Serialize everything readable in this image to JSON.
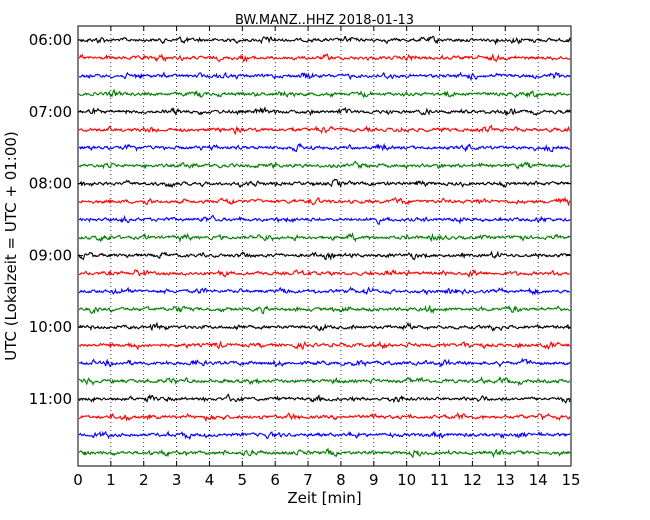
{
  "chart_data": {
    "type": "line",
    "title": "BW.MANZ..HHZ 2018-01-13",
    "xlabel": "Zeit  [min]",
    "ylabel": "UTC (Lokalzeit = UTC + 01:00)",
    "xlim": [
      0,
      15
    ],
    "x_ticks": [
      "0",
      "1",
      "2",
      "3",
      "4",
      "5",
      "6",
      "7",
      "8",
      "9",
      "10",
      "11",
      "12",
      "13",
      "14",
      "15"
    ],
    "y_tick_labels": [
      "06:00",
      "07:00",
      "08:00",
      "09:00",
      "10:00",
      "11:00"
    ],
    "trace_start_times": [
      "06:00",
      "06:15",
      "06:30",
      "06:45",
      "07:00",
      "07:15",
      "07:30",
      "07:45",
      "08:00",
      "08:15",
      "08:30",
      "08:45",
      "09:00",
      "09:15",
      "09:30",
      "09:45",
      "10:00",
      "10:15",
      "10:30",
      "10:45",
      "11:00",
      "11:15",
      "11:30",
      "11:45"
    ],
    "trace_colors": [
      "#000000",
      "#ff0000",
      "#0000ff",
      "#008000"
    ],
    "grid": "vertical dotted lines at each minute",
    "trace_minutes": 15
  }
}
